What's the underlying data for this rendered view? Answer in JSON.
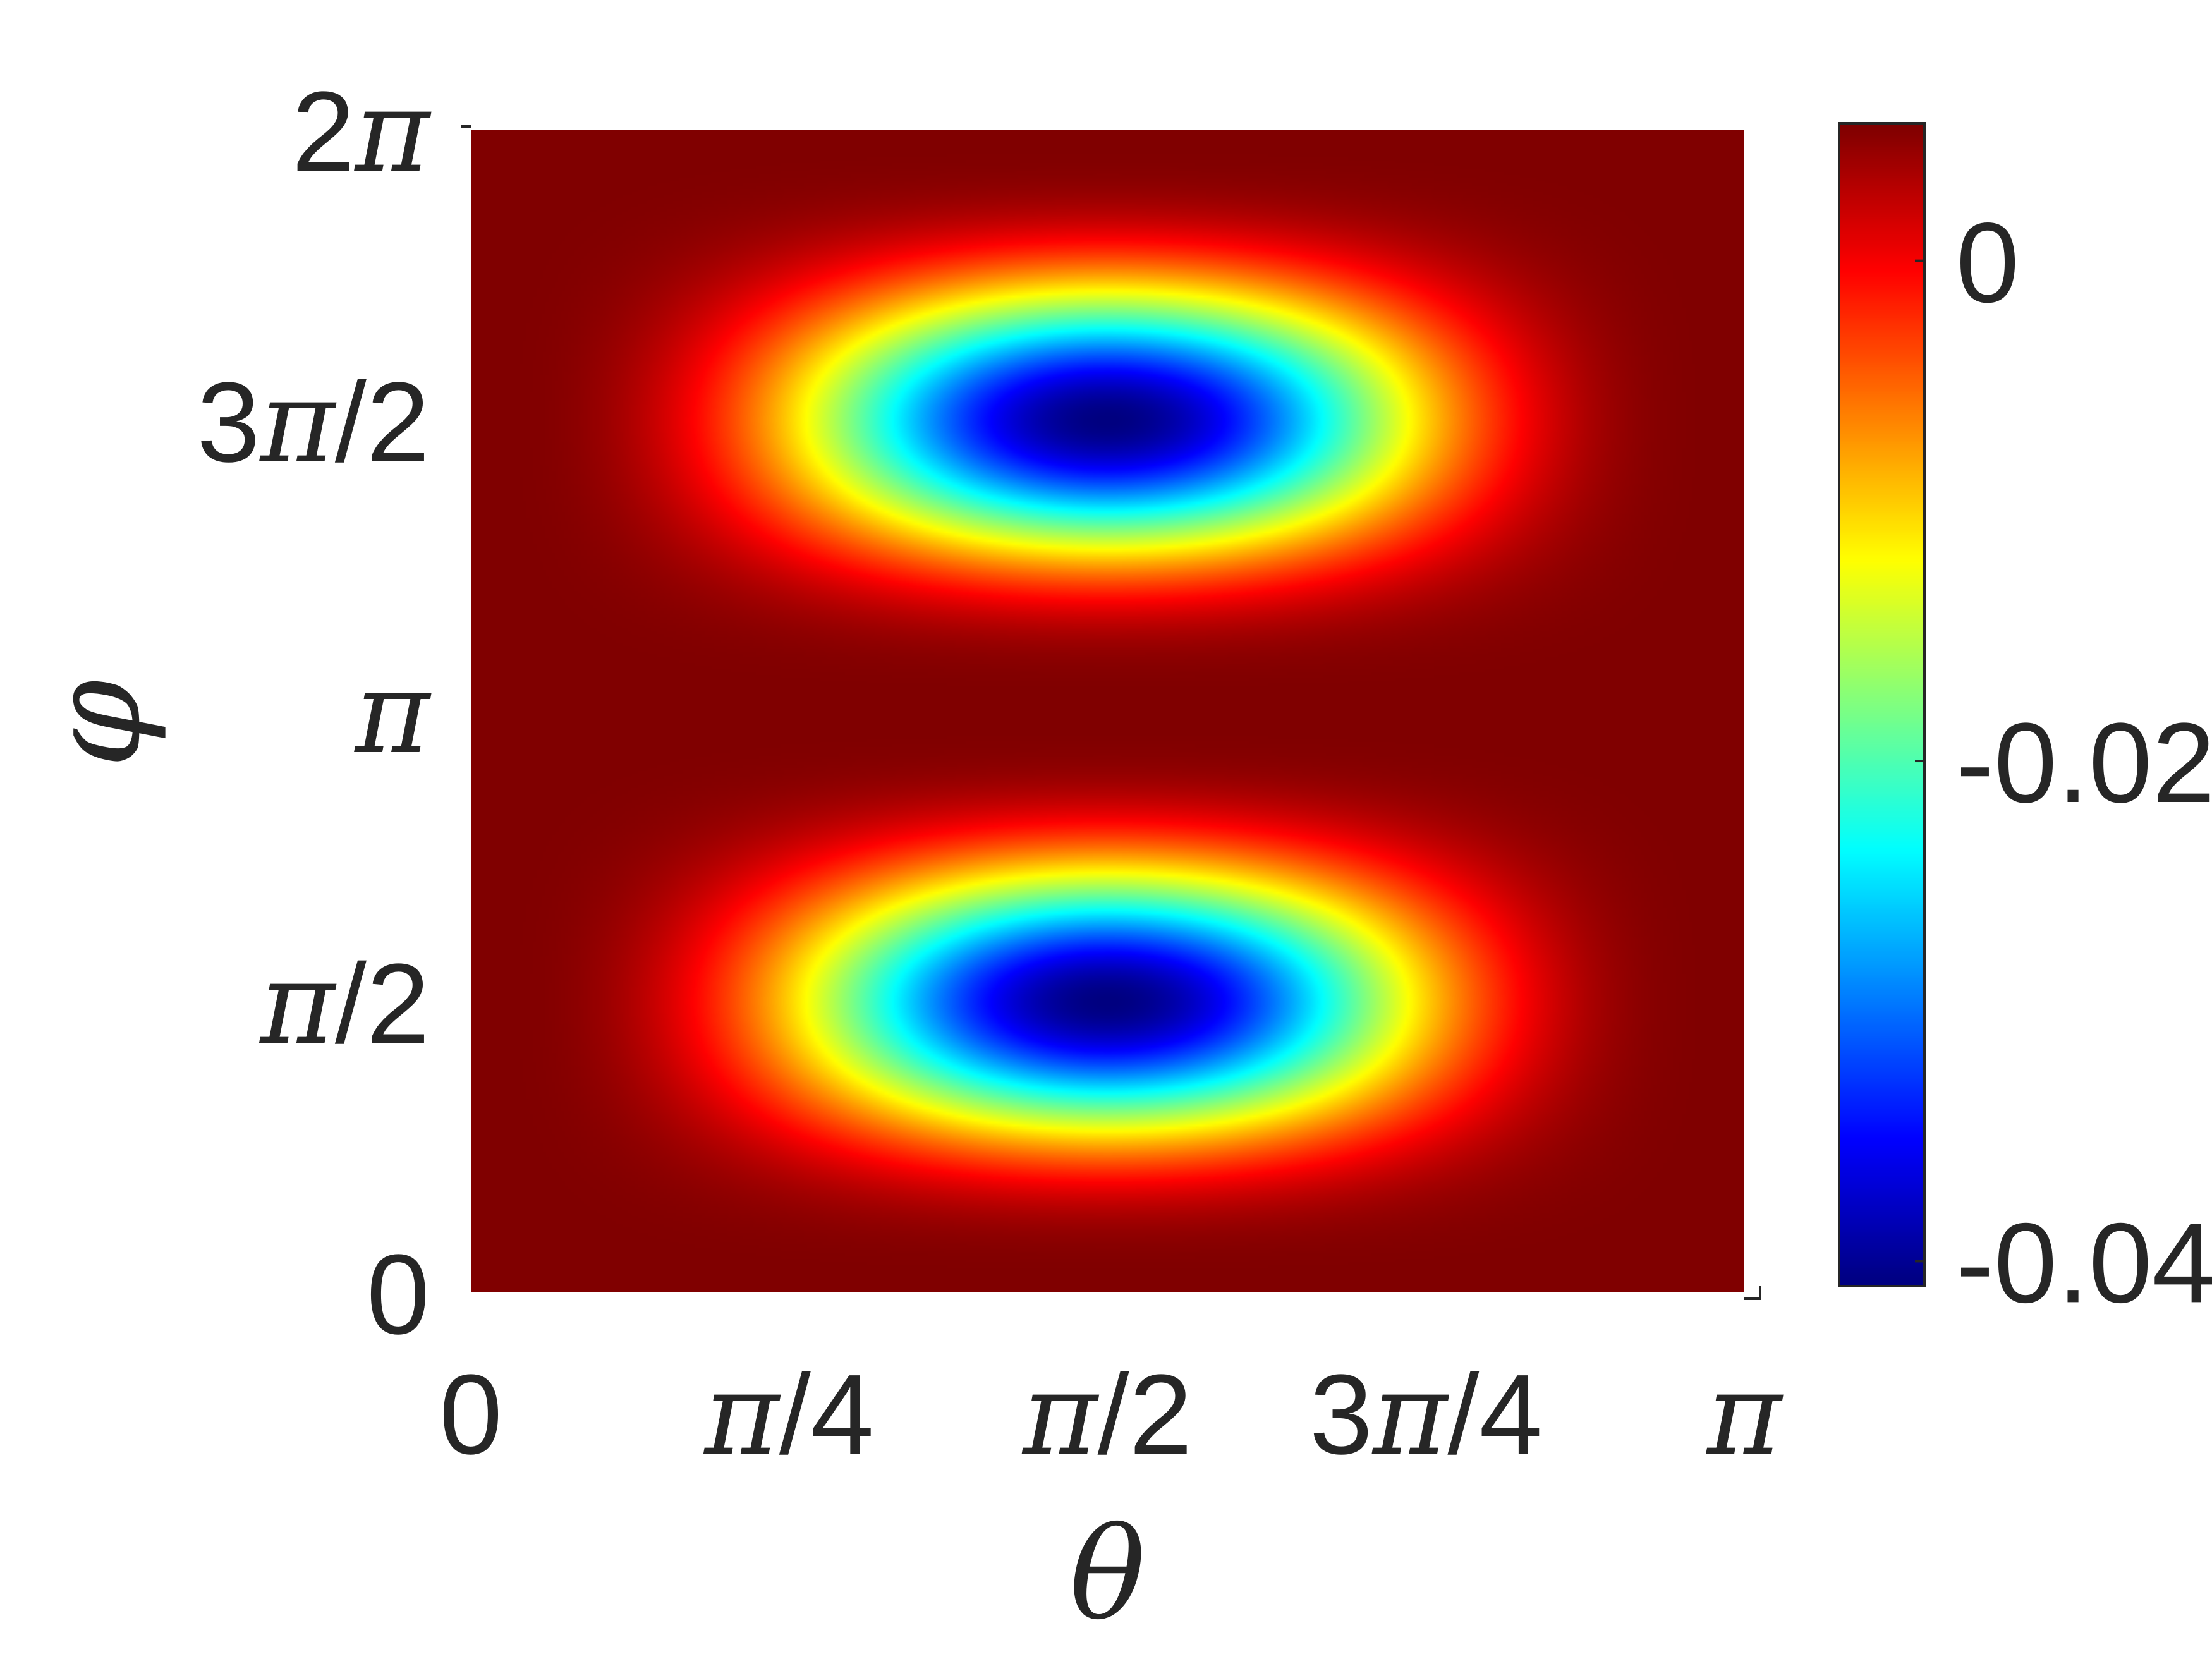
{
  "chart_data": {
    "type": "heatmap",
    "title": "",
    "xlabel": "θ",
    "ylabel": "φ",
    "xlim": [
      0,
      3.14159265
    ],
    "ylim": [
      0,
      6.28318531
    ],
    "x_ticks": [
      {
        "value": 0,
        "parts": [
          "0"
        ]
      },
      {
        "value": 0.785398,
        "parts": [
          "π",
          "/4"
        ]
      },
      {
        "value": 1.570796,
        "parts": [
          "π",
          "/2"
        ]
      },
      {
        "value": 2.356194,
        "parts": [
          "3",
          "π",
          "/4"
        ]
      },
      {
        "value": 3.141593,
        "parts": [
          "π"
        ]
      }
    ],
    "y_ticks": [
      {
        "value": 0,
        "parts": [
          "0"
        ]
      },
      {
        "value": 1.570796,
        "parts": [
          "π",
          "/2"
        ]
      },
      {
        "value": 3.141593,
        "parts": [
          "π"
        ]
      },
      {
        "value": 4.712389,
        "parts": [
          "3",
          "π",
          "/2"
        ]
      },
      {
        "value": 6.283185,
        "parts": [
          "2",
          "π"
        ]
      }
    ],
    "colorbar": {
      "colormap": "jet",
      "clim": [
        -0.041,
        0.0055
      ],
      "ticks": [
        {
          "value": 0,
          "label": "0"
        },
        {
          "value": -0.02,
          "label": "-0.02"
        },
        {
          "value": -0.04,
          "label": "-0.04"
        }
      ]
    },
    "field": {
      "description_values": "approximate field f(θ,φ) ≈ 0.0055 − 0.0465·sin²(θ)·sin²(φ)·exp(−(φ mod π − π/2)²·0.9)",
      "max": 0.0055,
      "min": -0.041,
      "minima": [
        {
          "x": 1.5708,
          "y": 1.2
        },
        {
          "x": 1.5708,
          "y": 4.1
        }
      ]
    }
  }
}
